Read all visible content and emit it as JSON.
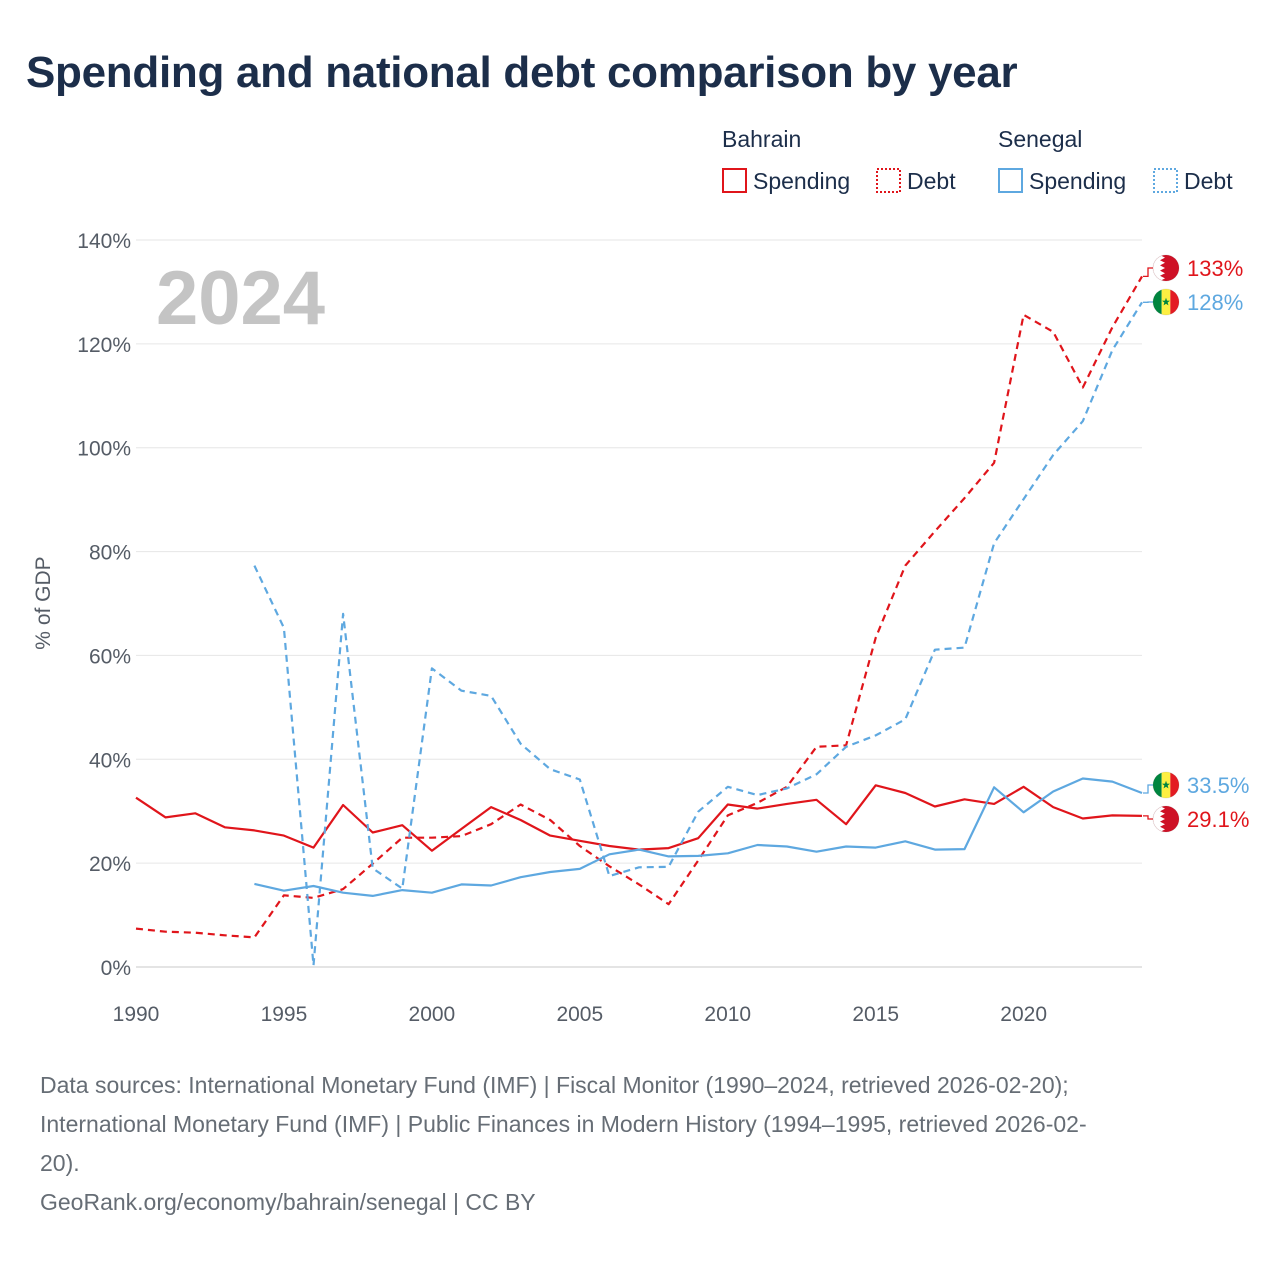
{
  "title": "Spending and national debt comparison by year",
  "legend": {
    "groups": [
      {
        "name": "Bahrain",
        "items": [
          {
            "label": "Spending",
            "style": "solid",
            "color": "#e0151b"
          },
          {
            "label": "Debt",
            "style": "dotted",
            "color": "#e0151b"
          }
        ]
      },
      {
        "name": "Senegal",
        "items": [
          {
            "label": "Spending",
            "style": "solid",
            "color": "#5ea8e0"
          },
          {
            "label": "Debt",
            "style": "dotted",
            "color": "#5ea8e0"
          }
        ]
      }
    ]
  },
  "year_label": "2024",
  "sources": {
    "line1": "Data sources: International Monetary Fund (IMF) | Fiscal Monitor (1990–2024, retrieved 2026-02-20);",
    "line2": "International Monetary Fund (IMF) | Public Finances in Modern History (1994–1995, retrieved 2026-02-",
    "line3": "20).",
    "credit": "GeoRank.org/economy/bahrain/senegal | CC BY"
  },
  "chart_data": {
    "type": "line",
    "title": "Spending and national debt comparison by year",
    "xlabel": "",
    "ylabel": "% of GDP",
    "xlim": [
      1990,
      2024
    ],
    "ylim": [
      0,
      140
    ],
    "x_ticks": [
      1990,
      1995,
      2000,
      2005,
      2010,
      2015,
      2020
    ],
    "y_ticks": [
      0,
      20,
      40,
      60,
      80,
      100,
      120,
      140
    ],
    "y_tick_labels": [
      "0%",
      "20%",
      "40%",
      "60%",
      "80%",
      "100%",
      "120%",
      "140%"
    ],
    "grid": true,
    "series": [
      {
        "name": "Bahrain Spending",
        "country": "Bahrain",
        "flag": "bahrain",
        "dash": "solid",
        "color": "#e0151b",
        "end_label": "29.1%",
        "x": [
          1990,
          1991,
          1992,
          1993,
          1994,
          1995,
          1996,
          1997,
          1998,
          1999,
          2000,
          2001,
          2002,
          2003,
          2004,
          2005,
          2006,
          2007,
          2008,
          2009,
          2010,
          2011,
          2012,
          2013,
          2014,
          2015,
          2016,
          2017,
          2018,
          2019,
          2020,
          2021,
          2022,
          2023,
          2024
        ],
        "y": [
          32.6,
          28.8,
          29.6,
          26.9,
          26.3,
          25.3,
          23.0,
          31.2,
          25.9,
          27.3,
          22.4,
          26.6,
          30.8,
          28.3,
          25.3,
          24.3,
          23.3,
          22.6,
          22.9,
          24.8,
          31.3,
          30.5,
          31.4,
          32.2,
          27.5,
          35.0,
          33.5,
          30.9,
          32.3,
          31.4,
          34.7,
          30.8,
          28.6,
          29.2,
          29.1
        ]
      },
      {
        "name": "Bahrain Debt",
        "country": "Bahrain",
        "flag": "bahrain",
        "dash": "dashed",
        "color": "#e0151b",
        "end_label": "133%",
        "x": [
          1990,
          1991,
          1992,
          1993,
          1994,
          1995,
          1996,
          1997,
          1998,
          1999,
          2000,
          2001,
          2002,
          2003,
          2004,
          2005,
          2006,
          2007,
          2008,
          2009,
          2010,
          2011,
          2012,
          2013,
          2014,
          2015,
          2016,
          2017,
          2018,
          2019,
          2020,
          2021,
          2022,
          2023,
          2024
        ],
        "y": [
          7.4,
          6.8,
          6.6,
          6.1,
          5.7,
          13.8,
          13.3,
          15.0,
          19.9,
          24.9,
          24.9,
          25.2,
          27.5,
          31.3,
          28.3,
          23.3,
          19.4,
          15.9,
          12.1,
          20.5,
          29.2,
          31.6,
          34.7,
          42.4,
          42.7,
          63.4,
          77.3,
          83.9,
          90.3,
          97.1,
          125.6,
          122.3,
          111.6,
          123.2,
          133.0
        ]
      },
      {
        "name": "Senegal Spending",
        "country": "Senegal",
        "flag": "senegal",
        "dash": "solid",
        "color": "#5ea8e0",
        "end_label": "33.5%",
        "x": [
          1994,
          1995,
          1996,
          1997,
          1998,
          1999,
          2000,
          2001,
          2002,
          2003,
          2004,
          2005,
          2006,
          2007,
          2008,
          2009,
          2010,
          2011,
          2012,
          2013,
          2014,
          2015,
          2016,
          2017,
          2018,
          2019,
          2020,
          2021,
          2022,
          2023,
          2024
        ],
        "y": [
          16.0,
          14.7,
          15.6,
          14.3,
          13.7,
          14.8,
          14.3,
          15.9,
          15.7,
          17.3,
          18.3,
          18.9,
          21.7,
          22.6,
          21.3,
          21.4,
          21.9,
          23.5,
          23.2,
          22.2,
          23.2,
          23.0,
          24.2,
          22.6,
          22.7,
          34.6,
          29.8,
          33.8,
          36.3,
          35.7,
          33.5
        ]
      },
      {
        "name": "Senegal Debt",
        "country": "Senegal",
        "flag": "senegal",
        "dash": "dashed",
        "color": "#5ea8e0",
        "end_label": "128%",
        "x": [
          1994,
          1995,
          1996,
          1997,
          1998,
          1999,
          2000,
          2001,
          2002,
          2003,
          2004,
          2005,
          2006,
          2007,
          2008,
          2009,
          2010,
          2011,
          2012,
          2013,
          2014,
          2015,
          2016,
          2017,
          2018,
          2019,
          2020,
          2021,
          2022,
          2023,
          2024
        ],
        "y": [
          77.3,
          65.3,
          0.3,
          68.0,
          19.0,
          15.1,
          57.5,
          53.2,
          52.2,
          43.0,
          38.1,
          36.1,
          17.5,
          19.2,
          19.3,
          29.9,
          34.7,
          33.1,
          34.4,
          37.1,
          42.4,
          44.6,
          47.7,
          61.1,
          61.5,
          81.6,
          90.1,
          98.6,
          105.1,
          118.8,
          128.0
        ]
      }
    ]
  }
}
